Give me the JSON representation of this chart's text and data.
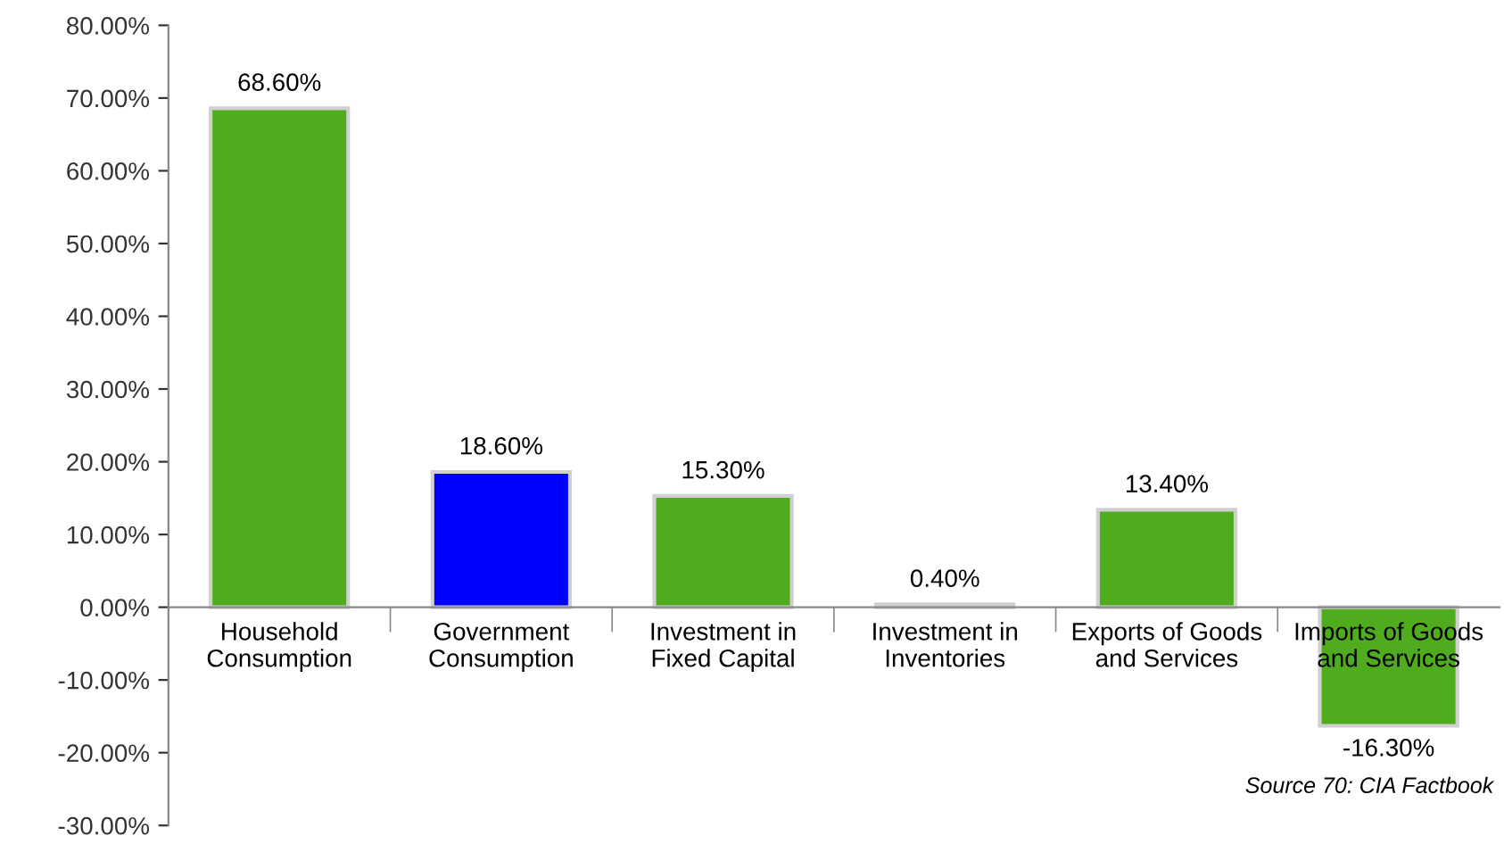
{
  "chart_data": {
    "type": "bar",
    "categories": [
      "Household\nConsumption",
      "Government\nConsumption",
      "Investment in\nFixed Capital",
      "Investment in\nInventories",
      "Exports of Goods\nand Services",
      "Imports of Goods\nand Services"
    ],
    "values": [
      68.6,
      18.6,
      15.3,
      0.4,
      13.4,
      -16.3
    ],
    "colors": [
      "#4eac1e",
      "#0000ff",
      "#4eac1e",
      "#4eac1e",
      "#4eac1e",
      "#4eac1e"
    ],
    "value_labels": [
      "68.60%",
      "18.60%",
      "15.30%",
      "0.40%",
      "13.40%",
      "-16.30%"
    ],
    "ylim": [
      -30,
      80
    ],
    "yticks": [
      {
        "value": -30,
        "label": "-30.00%"
      },
      {
        "value": -20,
        "label": "-20.00%"
      },
      {
        "value": -10,
        "label": "-10.00%"
      },
      {
        "value": 0,
        "label": "0.00%"
      },
      {
        "value": 10,
        "label": "10.00%"
      },
      {
        "value": 20,
        "label": "20.00%"
      },
      {
        "value": 30,
        "label": "30.00%"
      },
      {
        "value": 40,
        "label": "40.00%"
      },
      {
        "value": 50,
        "label": "50.00%"
      },
      {
        "value": 60,
        "label": "60.00%"
      },
      {
        "value": 70,
        "label": "70.00%"
      },
      {
        "value": 80,
        "label": "80.00%"
      }
    ],
    "grid": false,
    "legend": false,
    "annotations": [
      "Source 70: CIA Factbook"
    ]
  }
}
